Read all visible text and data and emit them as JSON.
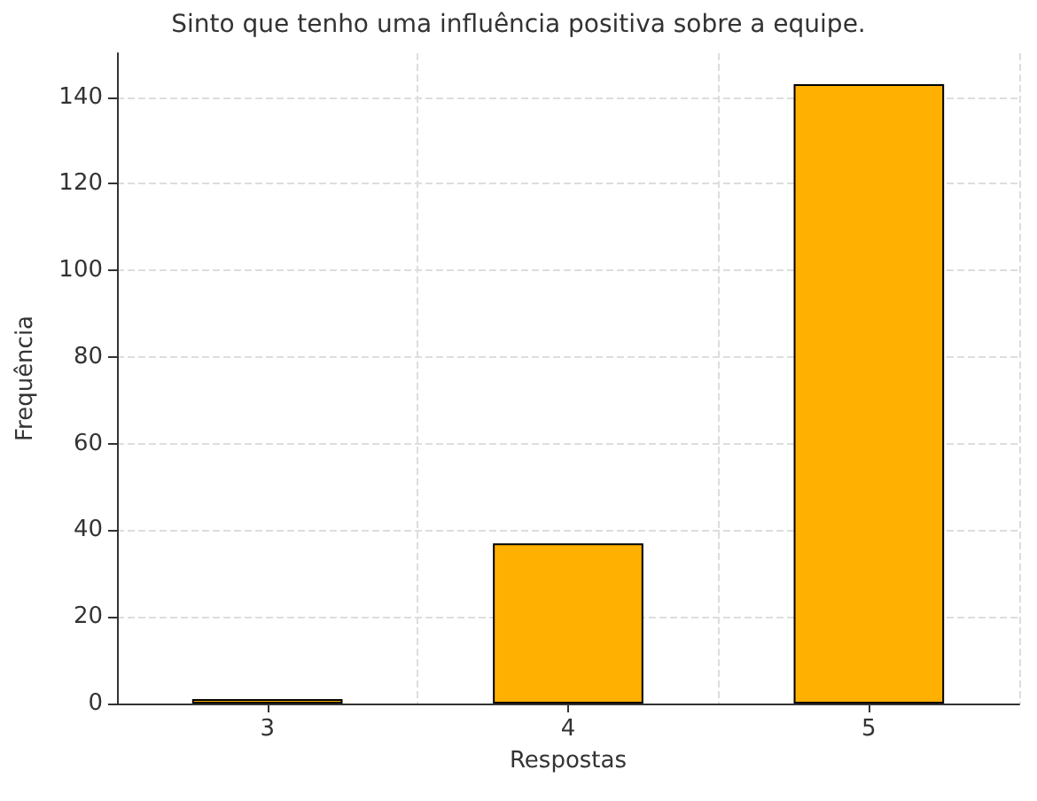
{
  "chart_data": {
    "type": "bar",
    "title": "Sinto que tenho uma influência positiva sobre a equipe.",
    "xlabel": "Respostas",
    "ylabel": "Frequência",
    "categories": [
      "3",
      "4",
      "5"
    ],
    "series": [
      {
        "color": "#ffb000",
        "values": [
          1,
          37,
          143
        ]
      }
    ],
    "ylim": [
      0,
      150.15
    ],
    "yticks": [
      0,
      20,
      40,
      60,
      80,
      100,
      120,
      140
    ],
    "grid": true
  }
}
